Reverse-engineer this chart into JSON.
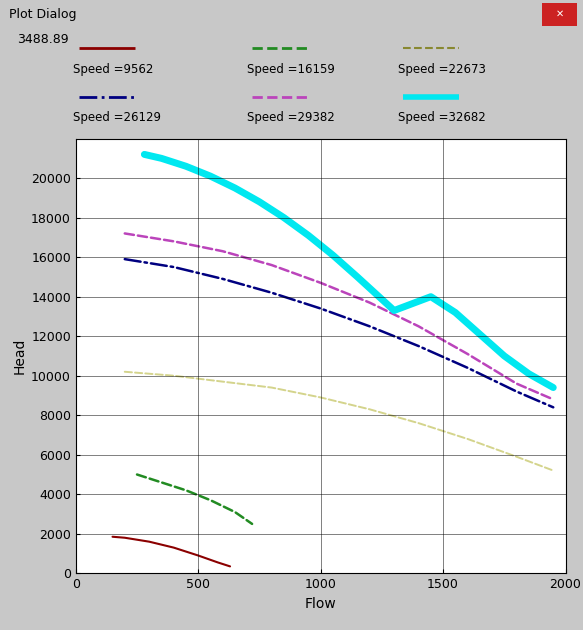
{
  "title_text": "3488.89",
  "window_title": "Plot Dialog",
  "xlabel": "Flow",
  "ylabel": "Head",
  "xlim": [
    0,
    2000
  ],
  "ylim": [
    0,
    22000
  ],
  "yticks": [
    0,
    2000,
    4000,
    6000,
    8000,
    10000,
    12000,
    14000,
    16000,
    18000,
    20000
  ],
  "xticks": [
    0,
    500,
    1000,
    1500,
    2000
  ],
  "background_color": "#c8c8c8",
  "plot_background": "#ffffff",
  "curves": [
    {
      "label": "Speed =9562",
      "color": "#8B0000",
      "linestyle": "solid",
      "linewidth": 1.5,
      "x": [
        150,
        200,
        300,
        400,
        500,
        580,
        630
      ],
      "y": [
        1850,
        1800,
        1600,
        1300,
        900,
        550,
        350
      ]
    },
    {
      "label": "Speed =16159",
      "color": "#228B22",
      "linestyle": "--",
      "linewidth": 1.8,
      "x": [
        250,
        350,
        450,
        550,
        650,
        720
      ],
      "y": [
        5000,
        4600,
        4200,
        3700,
        3100,
        2500
      ]
    },
    {
      "label": "Speed =22673",
      "color": "#d4d48c",
      "linestyle": "--",
      "linewidth": 1.4,
      "x": [
        200,
        400,
        600,
        800,
        1000,
        1200,
        1400,
        1600,
        1800,
        1950
      ],
      "y": [
        10200,
        10000,
        9700,
        9400,
        8900,
        8300,
        7600,
        6800,
        5900,
        5200
      ]
    },
    {
      "label": "Speed =26129",
      "color": "#000080",
      "linestyle": "-.",
      "linewidth": 1.8,
      "x": [
        200,
        400,
        600,
        800,
        1000,
        1200,
        1400,
        1600,
        1800,
        1950
      ],
      "y": [
        15900,
        15500,
        14900,
        14200,
        13400,
        12500,
        11500,
        10400,
        9200,
        8400
      ]
    },
    {
      "label": "Speed =29382",
      "color": "#bb44bb",
      "linestyle": "--",
      "linewidth": 1.8,
      "x": [
        200,
        400,
        600,
        800,
        1000,
        1200,
        1400,
        1600,
        1800,
        1950
      ],
      "y": [
        17200,
        16800,
        16300,
        15600,
        14700,
        13700,
        12500,
        11100,
        9600,
        8800
      ]
    },
    {
      "label": "Speed =32682",
      "color": "#00e8f0",
      "linestyle": "solid",
      "linewidth": 5.0,
      "x": [
        280,
        350,
        450,
        550,
        650,
        750,
        850,
        950,
        1050,
        1150,
        1300,
        1450,
        1550,
        1650,
        1750,
        1850,
        1950
      ],
      "y": [
        21200,
        21000,
        20600,
        20100,
        19500,
        18800,
        18000,
        17100,
        16100,
        15000,
        13300,
        14000,
        13200,
        12100,
        11000,
        10100,
        9400
      ]
    }
  ],
  "legend_entries": [
    {
      "label": "Speed =9562",
      "color": "#8B0000",
      "linestyle": "solid",
      "linewidth": 2.0
    },
    {
      "label": "Speed =16159",
      "color": "#228B22",
      "linestyle": "--",
      "linewidth": 2.0
    },
    {
      "label": "Speed =22673",
      "color": "#888830",
      "linestyle": "--",
      "linewidth": 1.5
    },
    {
      "label": "Speed =26129",
      "color": "#000080",
      "linestyle": "-.",
      "linewidth": 2.0
    },
    {
      "label": "Speed =29382",
      "color": "#bb44bb",
      "linestyle": "--",
      "linewidth": 2.0
    },
    {
      "label": "Speed =32682",
      "color": "#00e8f0",
      "linestyle": "solid",
      "linewidth": 4.0
    }
  ]
}
